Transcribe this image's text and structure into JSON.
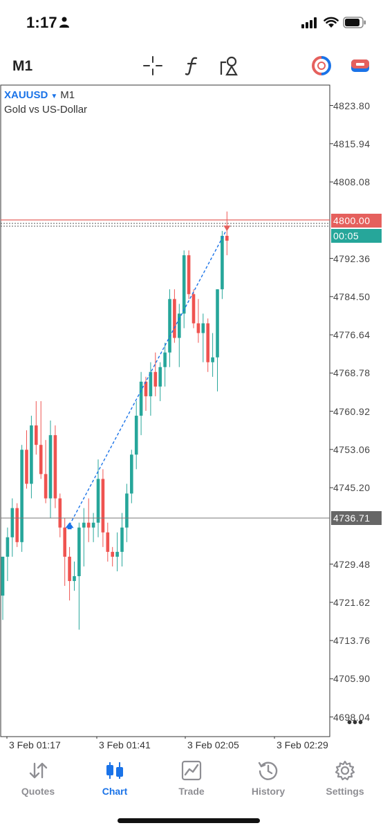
{
  "status_bar": {
    "time": "1:17",
    "icons": [
      "person-icon",
      "signal-icon",
      "wifi-icon",
      "battery-icon"
    ]
  },
  "toolbar": {
    "timeframe": "M1",
    "tools": [
      "crosshair-icon",
      "indicators-icon",
      "objects-icon",
      "one-click-trading-icon",
      "trade-panel-icon"
    ]
  },
  "chart": {
    "symbol": "XAUUSD",
    "symbol_timeframe": "M1",
    "description": "Gold vs US-Dollar",
    "price_axis": [
      "4823.80",
      "4815.94",
      "4808.08",
      "4792.36",
      "4784.50",
      "4776.64",
      "4768.78",
      "4760.92",
      "4753.06",
      "4745.20",
      "4729.48",
      "4721.62",
      "4713.76",
      "4705.90",
      "4698.04"
    ],
    "current_price_tag": "4800.00",
    "countdown_tag": "00:05",
    "crosshair_price_tag": "4736.71",
    "time_axis": [
      "3 Feb 01:17",
      "3 Feb 01:41",
      "3 Feb 02:05",
      "3 Feb 02:29"
    ],
    "colors": {
      "bull": "#26a69a",
      "bear": "#ef5350",
      "entry": "#1a73e8",
      "level": "#e5605d"
    }
  },
  "chart_data": {
    "type": "candlestick",
    "symbol": "XAUUSD",
    "timeframe": "M1",
    "ylim": [
      4694,
      4828
    ],
    "trade": {
      "entry_price": 4737.5,
      "exit_price": 4798.4
    },
    "candles": [
      [
        4723,
        4731,
        4718,
        4731
      ],
      [
        4731,
        4737,
        4726,
        4735
      ],
      [
        4735,
        4743,
        4731,
        4741
      ],
      [
        4741,
        4742,
        4733,
        4734
      ],
      [
        4734,
        4754,
        4732,
        4753
      ],
      [
        4753,
        4757,
        4745,
        4746
      ],
      [
        4746,
        4760,
        4743,
        4758
      ],
      [
        4758,
        4763,
        4752,
        4754
      ],
      [
        4754,
        4763,
        4747,
        4748
      ],
      [
        4748,
        4755,
        4742,
        4743
      ],
      [
        4743,
        4759,
        4739,
        4756
      ],
      [
        4756,
        4758,
        4741,
        4743
      ],
      [
        4743,
        4744,
        4735,
        4737
      ],
      [
        4737,
        4739,
        4725,
        4731
      ],
      [
        4731,
        4733,
        4722,
        4726
      ],
      [
        4726,
        4730,
        4724,
        4727
      ],
      [
        4727,
        4738,
        4716,
        4737
      ],
      [
        4737,
        4741,
        4729,
        4738
      ],
      [
        4738,
        4743,
        4734,
        4737
      ],
      [
        4737,
        4740,
        4734,
        4738
      ],
      [
        4738,
        4751,
        4735,
        4747
      ],
      [
        4747,
        4749,
        4733,
        4736
      ],
      [
        4736,
        4738,
        4730,
        4732
      ],
      [
        4732,
        4733,
        4729,
        4731
      ],
      [
        4731,
        4736,
        4728,
        4732
      ],
      [
        4732,
        4740,
        4729,
        4737
      ],
      [
        4737,
        4746,
        4734,
        4744
      ],
      [
        4744,
        4753,
        4742,
        4752
      ],
      [
        4752,
        4763,
        4749,
        4760
      ],
      [
        4760,
        4769,
        4756,
        4767
      ],
      [
        4767,
        4768,
        4761,
        4764
      ],
      [
        4764,
        4771,
        4760,
        4769
      ],
      [
        4769,
        4773,
        4764,
        4766
      ],
      [
        4766,
        4771,
        4763,
        4770
      ],
      [
        4770,
        4775,
        4766,
        4773
      ],
      [
        4773,
        4786,
        4770,
        4784
      ],
      [
        4784,
        4786,
        4775,
        4776
      ],
      [
        4776,
        4783,
        4770,
        4781
      ],
      [
        4781,
        4794,
        4778,
        4793
      ],
      [
        4793,
        4794,
        4784,
        4785
      ],
      [
        4785,
        4786,
        4778,
        4779
      ],
      [
        4779,
        4784,
        4775,
        4777
      ],
      [
        4777,
        4781,
        4771,
        4779
      ],
      [
        4779,
        4780,
        4769,
        4771
      ],
      [
        4771,
        4777,
        4768,
        4772
      ],
      [
        4772,
        4786,
        4765,
        4786
      ],
      [
        4786,
        4798,
        4784,
        4797
      ],
      [
        4797,
        4802,
        4793,
        4796
      ]
    ]
  },
  "bottom_nav": {
    "items": [
      {
        "label": "Quotes",
        "icon": "quotes-icon",
        "active": false
      },
      {
        "label": "Chart",
        "icon": "chart-icon",
        "active": true
      },
      {
        "label": "Trade",
        "icon": "trade-icon",
        "active": false
      },
      {
        "label": "History",
        "icon": "history-icon",
        "active": false
      },
      {
        "label": "Settings",
        "icon": "settings-icon",
        "active": false
      }
    ]
  }
}
